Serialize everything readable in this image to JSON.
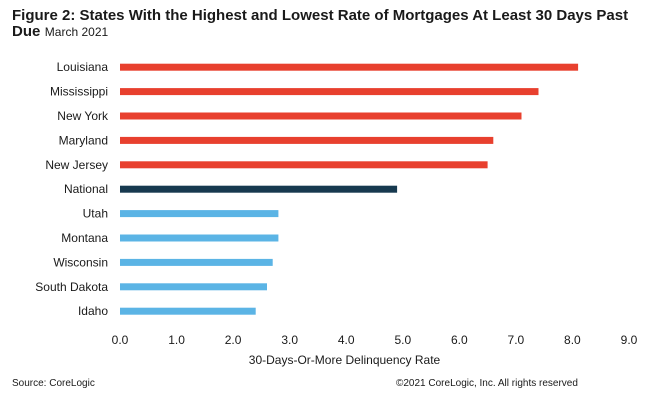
{
  "chart_data": {
    "type": "bar",
    "orientation": "horizontal",
    "title": "Figure 2: States With the Highest and Lowest Rate of Mortgages At Least 30 Days Past Due",
    "subtitle": "March 2021",
    "categories": [
      "Louisiana",
      "Mississippi",
      "New York",
      "Maryland",
      "New Jersey",
      "National",
      "Utah",
      "Montana",
      "Wisconsin",
      "South Dakota",
      "Idaho"
    ],
    "values": [
      8.1,
      7.4,
      7.1,
      6.6,
      6.5,
      4.9,
      2.8,
      2.8,
      2.7,
      2.6,
      2.4
    ],
    "bar_colors": [
      "#e8402e",
      "#e8402e",
      "#e8402e",
      "#e8402e",
      "#e8402e",
      "#17394f",
      "#5bb4e5",
      "#5bb4e5",
      "#5bb4e5",
      "#5bb4e5",
      "#5bb4e5"
    ],
    "xlabel": "30-Days-Or-More  Delinquency  Rate",
    "ylabel": "",
    "xlim": [
      0,
      9
    ],
    "xticks": [
      "0.0",
      "1.0",
      "2.0",
      "3.0",
      "4.0",
      "5.0",
      "6.0",
      "7.0",
      "8.0",
      "9.0"
    ],
    "grid": false,
    "legend": "none"
  },
  "footer": {
    "source": "Source: CoreLogic",
    "copyright": "©2021 CoreLogic, Inc. All rights reserved"
  }
}
